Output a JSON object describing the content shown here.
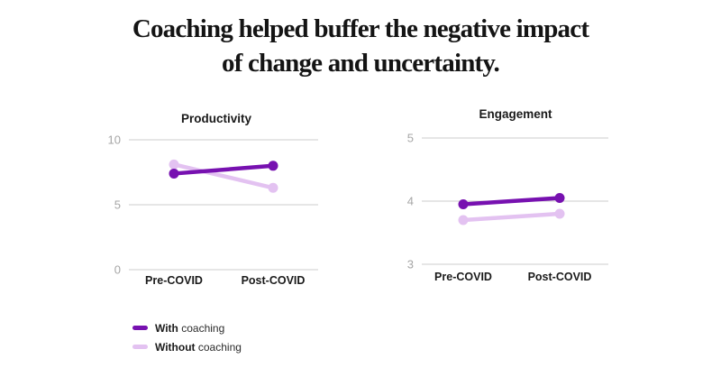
{
  "page_title": {
    "line1": "Coaching helped buffer the negative impact",
    "line2": "of change and uncertainty."
  },
  "colors": {
    "with_coaching": "#7711B0",
    "without_coaching": "#E3C2F1",
    "gridline": "#CDCDCD",
    "tick_label": "#A6A6A6",
    "category_label": "#1A1A1A",
    "chart_title": "#1A1A1A",
    "main_title": "#141414",
    "background": "#FFFFFF"
  },
  "legend": {
    "items": [
      {
        "bold": "With",
        "rest": " coaching",
        "series": "With coaching"
      },
      {
        "bold": "Without",
        "rest": " coaching",
        "series": "Without coaching"
      }
    ]
  },
  "chart_data": [
    {
      "type": "line",
      "title": "Productivity",
      "categories": [
        "Pre-COVID",
        "Post-COVID"
      ],
      "series": [
        {
          "name": "With coaching",
          "color": "#7711B0",
          "values": [
            7.4,
            8.0
          ]
        },
        {
          "name": "Without coaching",
          "color": "#E3C2F1",
          "values": [
            8.1,
            6.3
          ]
        }
      ],
      "ylim": [
        0,
        10
      ],
      "yticks": [
        10,
        5,
        0
      ],
      "grid": "horizontal",
      "legend_position": "below-left"
    },
    {
      "type": "line",
      "title": "Engagement",
      "categories": [
        "Pre-COVID",
        "Post-COVID"
      ],
      "series": [
        {
          "name": "With coaching",
          "color": "#7711B0",
          "values": [
            3.95,
            4.05
          ]
        },
        {
          "name": "Without coaching",
          "color": "#E3C2F1",
          "values": [
            3.7,
            3.8
          ]
        }
      ],
      "ylim": [
        3,
        5
      ],
      "yticks": [
        5,
        4,
        3
      ],
      "grid": "horizontal",
      "legend_position": "below-left"
    }
  ]
}
